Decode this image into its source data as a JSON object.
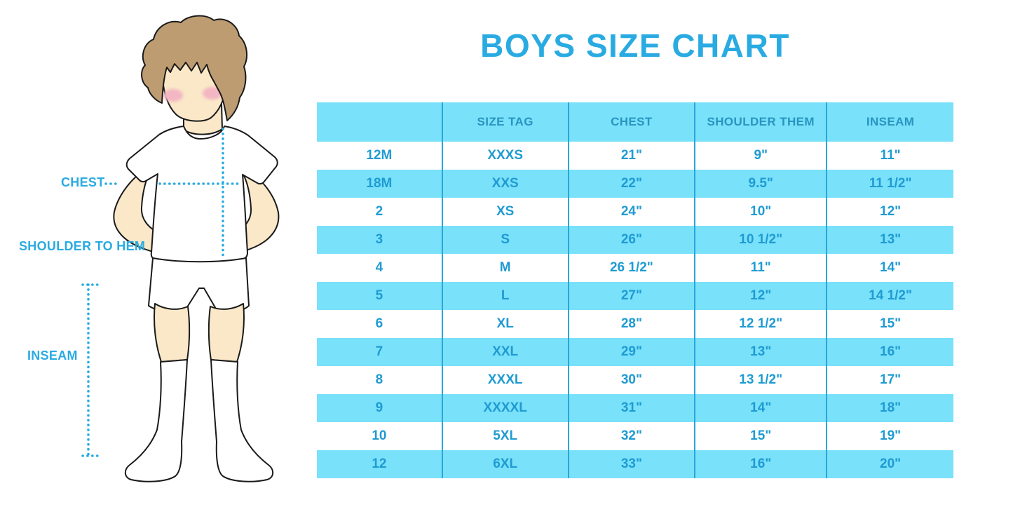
{
  "title": "BOYS SIZE CHART",
  "figure": {
    "description": "illustration of a boy in white t-shirt, shorts and knee socks with measurement guides",
    "labels": {
      "chest": "CHEST",
      "shoulder_to_hem": "SHOULDER TO HEM",
      "inseam": "INSEAM"
    }
  },
  "colors": {
    "accent_blue": "#29ABE2",
    "row_band": "#79E1FA",
    "column_divider": "#29A6D9",
    "table_text": "#1F9BD2",
    "skin": "#FAE8C8",
    "hair": "#BE9C72",
    "blush": "#F3B6C3",
    "outline": "#1A1A1A"
  },
  "chart_data": {
    "type": "table",
    "title": "BOYS SIZE CHART",
    "columns": [
      "",
      "SIZE TAG",
      "CHEST",
      "SHOULDER THEM",
      "INSEAM"
    ],
    "rows": [
      [
        "12M",
        "XXXS",
        "21\"",
        "9\"",
        "11\""
      ],
      [
        "18M",
        "XXS",
        "22\"",
        "9.5\"",
        "11 1/2\""
      ],
      [
        "2",
        "XS",
        "24\"",
        "10\"",
        "12\""
      ],
      [
        "3",
        "S",
        "26\"",
        "10 1/2\"",
        "13\""
      ],
      [
        "4",
        "M",
        "26 1/2\"",
        "11\"",
        "14\""
      ],
      [
        "5",
        "L",
        "27\"",
        "12\"",
        "14 1/2\""
      ],
      [
        "6",
        "XL",
        "28\"",
        "12 1/2\"",
        "15\""
      ],
      [
        "7",
        "XXL",
        "29\"",
        "13\"",
        "16\""
      ],
      [
        "8",
        "XXXL",
        "30\"",
        "13 1/2\"",
        "17\""
      ],
      [
        "9",
        "XXXXL",
        "31\"",
        "14\"",
        "18\""
      ],
      [
        "10",
        "5XL",
        "32\"",
        "15\"",
        "19\""
      ],
      [
        "12",
        "6XL",
        "33\"",
        "16\"",
        "20\""
      ]
    ],
    "layout": {
      "banding": "header and alternating rows light cyan, starting with header; first data row white",
      "gridlines": "vertical column dividers only"
    }
  }
}
